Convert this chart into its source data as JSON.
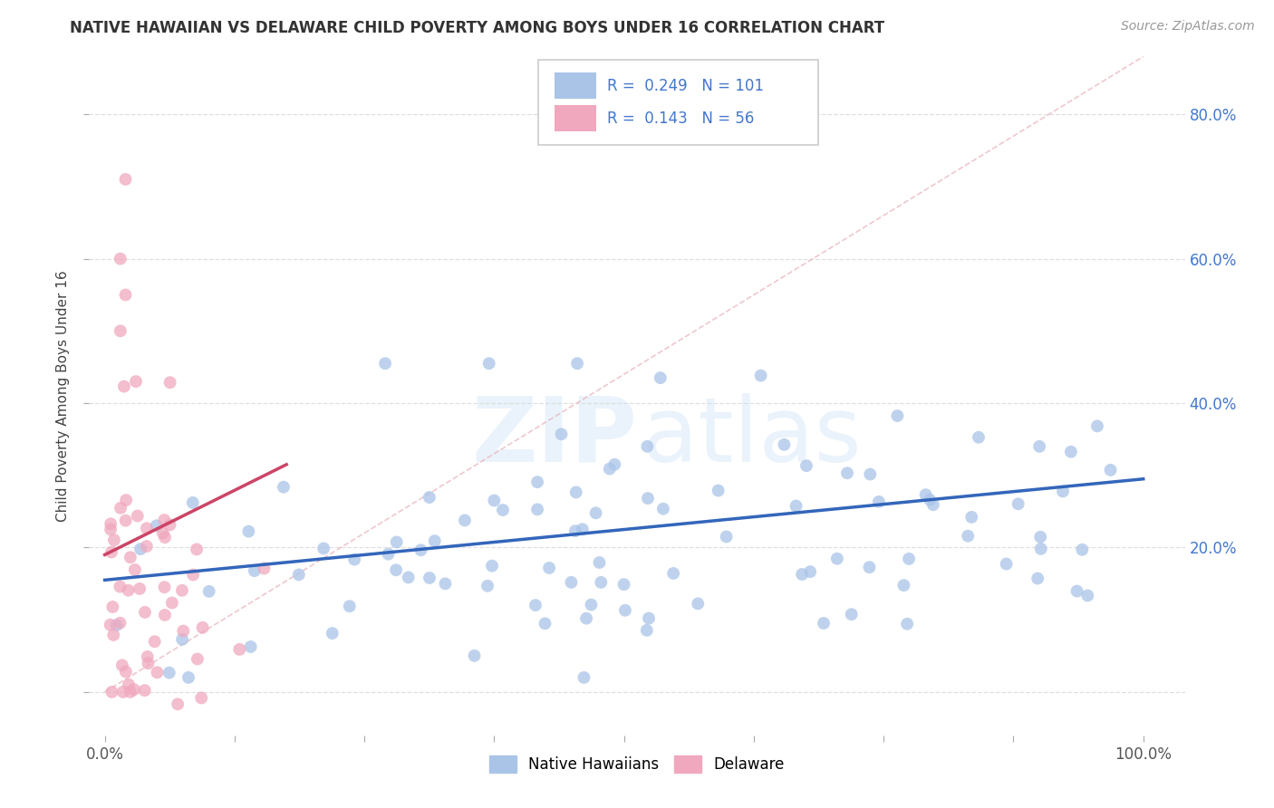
{
  "title": "NATIVE HAWAIIAN VS DELAWARE CHILD POVERTY AMONG BOYS UNDER 16 CORRELATION CHART",
  "source": "Source: ZipAtlas.com",
  "ylabel": "Child Poverty Among Boys Under 16",
  "r_blue": 0.249,
  "n_blue": 101,
  "r_pink": 0.143,
  "n_pink": 56,
  "legend_label_blue": "Native Hawaiians",
  "legend_label_pink": "Delaware",
  "blue_color": "#aac4e8",
  "pink_color": "#f0a8be",
  "blue_line_color": "#3366bb",
  "pink_line_color": "#cc4466",
  "diagonal_color": "#e8b0bb",
  "watermark": "ZIPatlas",
  "xlim": [
    -0.015,
    1.04
  ],
  "ylim": [
    -0.06,
    0.88
  ],
  "blue_line": [
    0.0,
    1.0,
    0.155,
    0.295
  ],
  "pink_line": [
    0.0,
    0.175,
    0.19,
    0.315
  ]
}
